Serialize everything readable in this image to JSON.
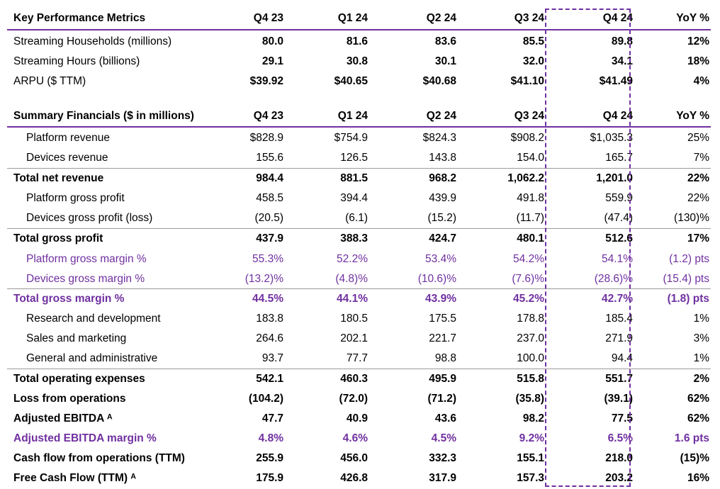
{
  "kpi": {
    "headers": [
      "Key Performance Metrics",
      "Q4 23",
      "Q1 24",
      "Q2 24",
      "Q3 24",
      "Q4 24",
      "YoY %"
    ],
    "rows": [
      {
        "label": "Streaming Households (millions)",
        "values": [
          "80.0",
          "81.6",
          "83.6",
          "85.5",
          "89.8",
          "12%"
        ]
      },
      {
        "label": "Streaming Hours (billions)",
        "values": [
          "29.1",
          "30.8",
          "30.1",
          "32.0",
          "34.1",
          "18%"
        ]
      },
      {
        "label": "ARPU ($ TTM)",
        "values": [
          "$39.92",
          "$40.65",
          "$40.68",
          "$41.10",
          "$41.49",
          "4%"
        ]
      }
    ]
  },
  "fin": {
    "headers": [
      "Summary Financials ($ in millions)",
      "Q4 23",
      "Q1 24",
      "Q2 24",
      "Q3 24",
      "Q4 24",
      "YoY %"
    ],
    "rows": [
      {
        "label": "Platform revenue",
        "values": [
          "$828.9",
          "$754.9",
          "$824.3",
          "$908.2",
          "$1,035.3",
          "25%"
        ]
      },
      {
        "label": "Devices revenue",
        "values": [
          "155.6",
          "126.5",
          "143.8",
          "154.0",
          "165.7",
          "7%"
        ]
      },
      {
        "label": "Total net revenue",
        "values": [
          "984.4",
          "881.5",
          "968.2",
          "1,062.2",
          "1,201.0",
          "22%"
        ]
      },
      {
        "label": "Platform gross profit",
        "values": [
          "458.5",
          "394.4",
          "439.9",
          "491.8",
          "559.9",
          "22%"
        ]
      },
      {
        "label": "Devices gross profit (loss)",
        "values": [
          "(20.5)",
          "(6.1)",
          "(15.2)",
          "(11.7)",
          "(47.4)",
          "(130)%"
        ]
      },
      {
        "label": "Total gross profit",
        "values": [
          "437.9",
          "388.3",
          "424.7",
          "480.1",
          "512.6",
          "17%"
        ]
      },
      {
        "label": "Platform gross margin %",
        "values": [
          "55.3%",
          "52.2%",
          "53.4%",
          "54.2%",
          "54.1%",
          "(1.2) pts"
        ]
      },
      {
        "label": "Devices gross margin %",
        "values": [
          "(13.2)%",
          "(4.8)%",
          "(10.6)%",
          "(7.6)%",
          "(28.6)%",
          "(15.4) pts"
        ]
      },
      {
        "label": "Total gross margin %",
        "values": [
          "44.5%",
          "44.1%",
          "43.9%",
          "45.2%",
          "42.7%",
          "(1.8) pts"
        ]
      },
      {
        "label": "Research and development",
        "values": [
          "183.8",
          "180.5",
          "175.5",
          "178.8",
          "185.4",
          "1%"
        ]
      },
      {
        "label": "Sales and marketing",
        "values": [
          "264.6",
          "202.1",
          "221.7",
          "237.0",
          "271.9",
          "3%"
        ]
      },
      {
        "label": "General and administrative",
        "values": [
          "93.7",
          "77.7",
          "98.8",
          "100.0",
          "94.4",
          "1%"
        ]
      },
      {
        "label": "Total operating expenses",
        "values": [
          "542.1",
          "460.3",
          "495.9",
          "515.8",
          "551.7",
          "2%"
        ]
      },
      {
        "label": "Loss from operations",
        "values": [
          "(104.2)",
          "(72.0)",
          "(71.2)",
          "(35.8)",
          "(39.1)",
          "62%"
        ]
      },
      {
        "label": "Adjusted EBITDA ᴬ",
        "values": [
          "47.7",
          "40.9",
          "43.6",
          "98.2",
          "77.5",
          "62%"
        ]
      },
      {
        "label": "Adjusted EBITDA margin %",
        "values": [
          "4.8%",
          "4.6%",
          "4.5%",
          "9.2%",
          "6.5%",
          "1.6 pts"
        ]
      },
      {
        "label": "Cash flow from operations (TTM)",
        "values": [
          "255.9",
          "456.0",
          "332.3",
          "155.1",
          "218.0",
          "(15)%"
        ]
      },
      {
        "label": "Free Cash Flow (TTM) ᴬ",
        "values": [
          "175.9",
          "426.8",
          "317.9",
          "157.3",
          "203.2",
          "16%"
        ]
      }
    ]
  },
  "colors": {
    "accent": "#7030a0",
    "rule": "#9a9a9a"
  }
}
